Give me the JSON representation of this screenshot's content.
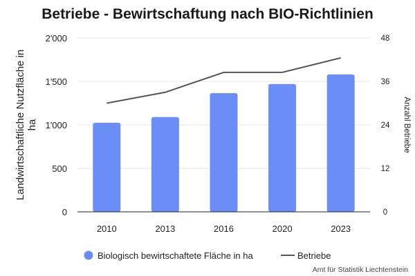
{
  "chart_data": {
    "type": "bar+line",
    "title": "Betriebe - Bewirtschaftung nach BIO-Richtlinien",
    "categories": [
      "2010",
      "2013",
      "2016",
      "2020",
      "2023"
    ],
    "y_left": {
      "label": "Landwirtschaftliche Nutzfläche in ha",
      "label_lines": [
        "Landwirtschaftliche Nutzfläche in",
        "ha"
      ],
      "range": [
        0,
        2000
      ],
      "ticks": [
        0,
        500,
        1000,
        1500,
        2000
      ],
      "tick_labels": [
        "0",
        "500",
        "1'000",
        "1'500",
        "2'000"
      ]
    },
    "y_right": {
      "label": "Anzahl Betriebe",
      "range": [
        0,
        48
      ],
      "ticks": [
        0,
        12,
        24,
        36,
        48
      ],
      "tick_labels": [
        "0",
        "12",
        "24",
        "36",
        "48"
      ]
    },
    "series": [
      {
        "name": "Biologisch bewirtschaftete Fläche in ha",
        "type": "bar",
        "axis": "left",
        "color": "#6b8ef6",
        "values": [
          1025,
          1090,
          1365,
          1470,
          1580
        ]
      },
      {
        "name": "Betriebe",
        "type": "line",
        "axis": "right",
        "color": "#555555",
        "values": [
          30,
          33,
          38.5,
          38.5,
          42.5
        ]
      }
    ],
    "grid": true,
    "legend_position": "bottom"
  },
  "source": "Amt für Statistik Liechtenstein"
}
